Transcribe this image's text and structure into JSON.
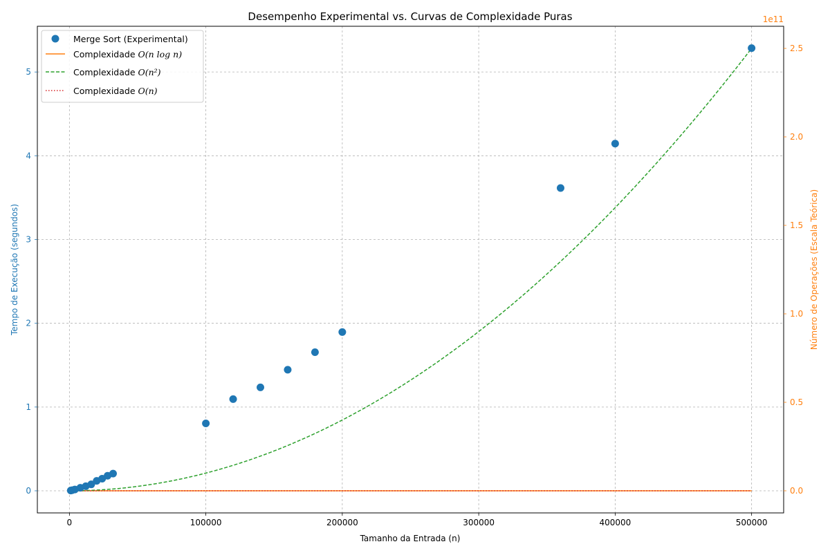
{
  "chart_data": {
    "type": "scatter",
    "title": "Desempenho Experimental vs. Curvas de Complexidade Puras",
    "xlabel": "Tamanho da Entrada (n)",
    "ylabel": "Tempo de Execução (segundos)",
    "ylabel_right": "Número de Operações (Escala Teórica)",
    "right_axis_offset_label": "1e11",
    "xlim": [
      -23500,
      523500
    ],
    "ylim": [
      -0.264,
      5.546
    ],
    "ylim_right": [
      -12500000000,
      262500000000
    ],
    "xticks": [
      0,
      100000,
      200000,
      300000,
      400000,
      500000
    ],
    "xtick_labels": [
      "0",
      "100000",
      "200000",
      "300000",
      "400000",
      "500000"
    ],
    "yticks": [
      0,
      1,
      2,
      3,
      4,
      5
    ],
    "ytick_labels": [
      "0",
      "1",
      "2",
      "3",
      "4",
      "5"
    ],
    "yticks_right": [
      0,
      50000000000,
      100000000000,
      150000000000,
      200000000000,
      250000000000
    ],
    "ytick_labels_right": [
      "0.0",
      "0.5",
      "1.0",
      "1.5",
      "2.0",
      "2.5"
    ],
    "grid": true,
    "legend_position": "upper-left",
    "colors": {
      "left_axis": "#1f77b4",
      "right_axis": "#ff7f0e",
      "points": "#1f77b4",
      "nlogn": "#ff7f0e",
      "n2": "#2ca02c",
      "n": "#d62728"
    },
    "legend": [
      {
        "label": "Merge Sort (Experimental)"
      },
      {
        "label_text": "Complexidade ",
        "label_math": "O(n log n)"
      },
      {
        "label_text": "Complexidade ",
        "label_math": "O(n²)"
      },
      {
        "label_text": "Complexidade ",
        "label_math": "O(n)"
      }
    ],
    "series": [
      {
        "name": "Merge Sort (Experimental)",
        "kind": "points",
        "axis": "left",
        "x": [
          1000,
          2000,
          4000,
          8000,
          12000,
          16000,
          20000,
          24000,
          28000,
          32000,
          100000,
          120000,
          140000,
          160000,
          180000,
          200000,
          360000,
          400000,
          500000
        ],
        "y": [
          0.003,
          0.007,
          0.016,
          0.036,
          0.055,
          0.077,
          0.119,
          0.145,
          0.18,
          0.205,
          0.805,
          1.095,
          1.235,
          1.445,
          1.655,
          1.895,
          3.615,
          4.145,
          5.285
        ]
      },
      {
        "name": "Complexidade O(n log n)",
        "kind": "line",
        "axis": "right",
        "function": "nlogn",
        "x_range": [
          1000,
          500000
        ]
      },
      {
        "name": "Complexidade O(n²)",
        "kind": "line",
        "axis": "right",
        "function": "n2",
        "x_range": [
          1000,
          500000
        ]
      },
      {
        "name": "Complexidade O(n)",
        "kind": "line",
        "axis": "right",
        "function": "n",
        "x_range": [
          1000,
          500000
        ]
      }
    ]
  }
}
